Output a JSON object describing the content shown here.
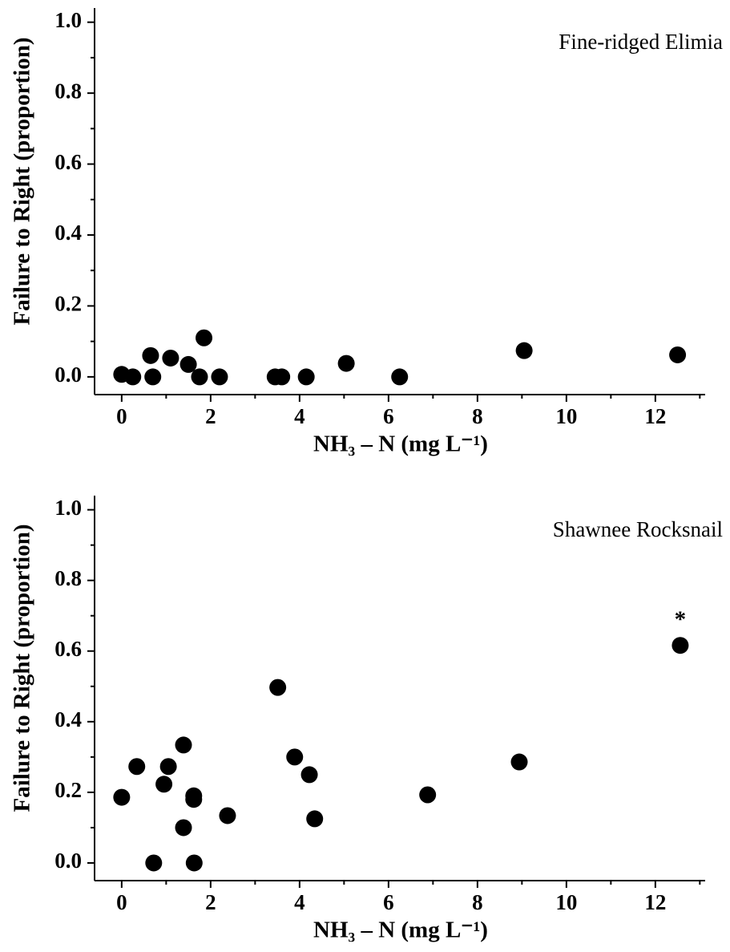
{
  "chart_data": [
    {
      "type": "scatter",
      "panel_label": "Fine-ridged Elimia",
      "xlabel": "NH₃ – N (mg L⁻¹)",
      "ylabel": "Failure to Right (proportion)",
      "color": "#000000",
      "x": [
        0,
        0.25,
        0.65,
        0.7,
        1.1,
        1.5,
        1.75,
        1.85,
        2.2,
        3.45,
        3.6,
        4.15,
        5.05,
        6.25,
        9.05,
        12.5
      ],
      "values": [
        0.007,
        0,
        0.06,
        0,
        0.053,
        0.035,
        0,
        0.11,
        0,
        0,
        0,
        0,
        0.038,
        0,
        0.074,
        0.062
      ],
      "xlim": [
        -0.61,
        13.12
      ],
      "ylim": [
        -0.05,
        1.04
      ],
      "xticks": [
        0,
        2,
        4,
        6,
        8,
        10,
        12
      ],
      "xminorticks": [
        1,
        3,
        5,
        7,
        9,
        11,
        13
      ],
      "yticks": [
        {
          "value": 0,
          "label": "0.0"
        },
        {
          "value": 0.2,
          "label": "0.2"
        },
        {
          "value": 0.4,
          "label": "0.4"
        },
        {
          "value": 0.6,
          "label": "0.6"
        },
        {
          "value": 0.8,
          "label": "0.8"
        },
        {
          "value": 1,
          "label": "1.0"
        }
      ],
      "yminorticks": [
        0.1,
        0.3,
        0.5,
        0.7,
        0.9
      ]
    },
    {
      "type": "scatter",
      "panel_label": "Shawnee Rocksnail",
      "xlabel": "NH₃ – N (mg L⁻¹)",
      "ylabel": "Failure to Right (proportion)",
      "color": "#000000",
      "x": [
        0,
        0.34,
        0.72,
        0.95,
        1.05,
        1.39,
        1.39,
        1.62,
        1.62,
        1.63,
        2.38,
        3.51,
        3.89,
        4.22,
        4.34,
        6.88,
        8.94,
        12.56
      ],
      "values": [
        0.186,
        0.273,
        0,
        0.223,
        0.273,
        0.334,
        0.1,
        0.19,
        0.18,
        0,
        0.134,
        0.497,
        0.3,
        0.25,
        0.125,
        0.193,
        0.286,
        0.616
      ],
      "annotation": "*",
      "xlim": [
        -0.61,
        13.12
      ],
      "ylim": [
        -0.05,
        1.04
      ],
      "xticks": [
        0,
        2,
        4,
        6,
        8,
        10,
        12
      ],
      "xminorticks": [
        1,
        3,
        5,
        7,
        9,
        11,
        13
      ],
      "yticks": [
        {
          "value": 0,
          "label": "0.0"
        },
        {
          "value": 0.2,
          "label": "0.2"
        },
        {
          "value": 0.4,
          "label": "0.4"
        },
        {
          "value": 0.6,
          "label": "0.6"
        },
        {
          "value": 0.8,
          "label": "0.8"
        },
        {
          "value": 1,
          "label": "1.0"
        }
      ],
      "yminorticks": [
        0.1,
        0.3,
        0.5,
        0.7,
        0.9
      ]
    }
  ]
}
